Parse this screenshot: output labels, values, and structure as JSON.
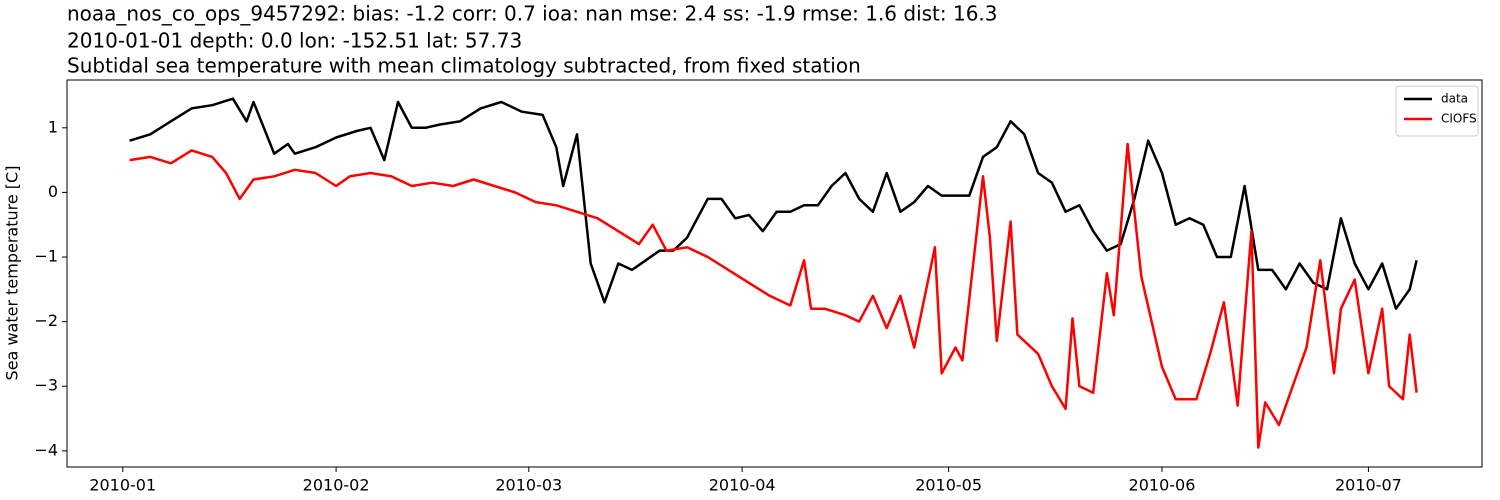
{
  "chart_data": {
    "type": "line",
    "title": [
      "noaa_nos_co_ops_9457292: bias: -1.2  corr: 0.7  ioa: nan  mse: 2.4  ss: -1.9  rmse: 1.6  dist: 16.3",
      "2010-01-01 depth: 0.0 lon: -152.51 lat: 57.73",
      "Subtidal sea temperature with mean climatology subtracted, from fixed station"
    ],
    "y_label": "Sea water temperature [C]",
    "xlim": [
      -8.1,
      197.5
    ],
    "xticks": [
      {
        "value": 0,
        "label": "2010-01"
      },
      {
        "value": 31,
        "label": "2010-02"
      },
      {
        "value": 59,
        "label": "2010-03"
      },
      {
        "value": 90,
        "label": "2010-04"
      },
      {
        "value": 120,
        "label": "2010-05"
      },
      {
        "value": 151,
        "label": "2010-06"
      },
      {
        "value": 181,
        "label": "2010-07"
      }
    ],
    "ylim": [
      -4.25,
      1.74
    ],
    "yticks": [
      {
        "value": -4,
        "label": "−4"
      },
      {
        "value": -3,
        "label": "−3"
      },
      {
        "value": -2,
        "label": "−2"
      },
      {
        "value": -1,
        "label": "−1"
      },
      0,
      1
    ],
    "legend": "upper right",
    "series": [
      {
        "name": "data",
        "color": "#000000",
        "x": [
          1,
          4,
          7,
          10,
          13,
          16,
          18,
          19,
          22,
          24,
          25,
          28,
          31,
          34,
          36,
          38,
          40,
          42,
          44,
          46,
          49,
          52,
          55,
          58,
          61,
          63,
          64,
          66,
          68,
          70,
          72,
          74,
          76,
          78,
          80,
          82,
          85,
          87,
          89,
          91,
          93,
          95,
          97,
          99,
          101,
          103,
          105,
          107,
          109,
          111,
          113,
          115,
          117,
          119,
          121,
          123,
          125,
          127,
          129,
          131,
          133,
          135,
          137,
          139,
          141,
          143,
          145,
          147,
          149,
          151,
          153,
          155,
          157,
          159,
          161,
          163,
          165,
          167,
          169,
          171,
          173,
          175,
          177,
          179,
          181,
          183,
          185,
          187,
          188
        ],
        "values": [
          0.8,
          0.9,
          1.1,
          1.3,
          1.35,
          1.45,
          1.1,
          1.4,
          0.6,
          0.75,
          0.6,
          0.7,
          0.85,
          0.95,
          1.0,
          0.5,
          1.4,
          1.0,
          1.0,
          1.05,
          1.1,
          1.3,
          1.4,
          1.25,
          1.2,
          0.7,
          0.1,
          0.9,
          -1.1,
          -1.7,
          -1.1,
          -1.2,
          -1.05,
          -0.9,
          -0.9,
          -0.7,
          -0.1,
          -0.1,
          -0.4,
          -0.35,
          -0.6,
          -0.3,
          -0.3,
          -0.2,
          -0.2,
          0.1,
          0.3,
          -0.1,
          -0.3,
          0.3,
          -0.3,
          -0.15,
          0.1,
          -0.05,
          -0.05,
          -0.05,
          0.55,
          0.7,
          1.1,
          0.9,
          0.3,
          0.15,
          -0.3,
          -0.2,
          -0.6,
          -0.9,
          -0.8,
          -0.1,
          0.8,
          0.3,
          -0.5,
          -0.4,
          -0.5,
          -1.0,
          -1.0,
          0.1,
          -1.2,
          -1.2,
          -1.5,
          -1.1,
          -1.4,
          -1.5,
          -0.4,
          -1.1,
          -1.5,
          -1.1,
          -1.8,
          -1.5,
          -1.05
        ]
      },
      {
        "name": "CIOFS",
        "color": "#ff0000",
        "x": [
          1,
          4,
          7,
          10,
          13,
          15,
          17,
          19,
          22,
          25,
          28,
          31,
          33,
          36,
          39,
          42,
          45,
          48,
          51,
          54,
          57,
          60,
          63,
          66,
          69,
          72,
          75,
          77,
          79,
          82,
          85,
          88,
          91,
          94,
          97,
          99,
          100,
          102,
          105,
          107,
          109,
          111,
          113,
          115,
          118,
          119,
          121,
          122,
          125,
          126,
          127,
          129,
          130,
          133,
          135,
          137,
          138,
          139,
          141,
          143,
          144,
          146,
          147,
          148,
          151,
          153,
          156,
          158,
          160,
          162,
          164,
          165,
          166,
          168,
          170,
          172,
          174,
          176,
          177,
          179,
          181,
          183,
          184,
          186,
          187,
          188
        ],
        "values": [
          0.5,
          0.55,
          0.45,
          0.65,
          0.55,
          0.3,
          -0.1,
          0.2,
          0.25,
          0.35,
          0.3,
          0.1,
          0.25,
          0.3,
          0.25,
          0.1,
          0.15,
          0.1,
          0.2,
          0.1,
          0.0,
          -0.15,
          -0.2,
          -0.3,
          -0.4,
          -0.6,
          -0.8,
          -0.5,
          -0.9,
          -0.85,
          -1.0,
          -1.2,
          -1.4,
          -1.6,
          -1.75,
          -1.05,
          -1.8,
          -1.8,
          -1.9,
          -2.0,
          -1.6,
          -2.1,
          -1.6,
          -2.4,
          -0.85,
          -2.8,
          -2.4,
          -2.6,
          0.25,
          -0.7,
          -2.3,
          -0.45,
          -2.2,
          -2.5,
          -3.0,
          -3.35,
          -1.95,
          -3.0,
          -3.1,
          -1.25,
          -1.9,
          0.75,
          -0.3,
          -1.3,
          -2.7,
          -3.2,
          -3.2,
          -2.5,
          -1.7,
          -3.3,
          -0.6,
          -3.95,
          -3.25,
          -3.6,
          -3.0,
          -2.4,
          -1.05,
          -2.8,
          -1.8,
          -1.35,
          -2.8,
          -1.8,
          -3.0,
          -3.2,
          -2.2,
          -3.1
        ]
      }
    ]
  }
}
